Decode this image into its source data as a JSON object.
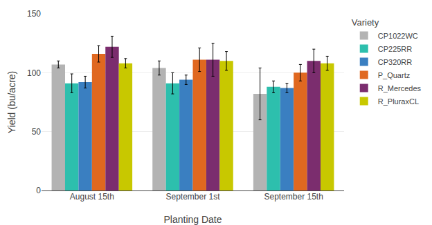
{
  "chart_data": {
    "type": "bar",
    "xlabel": "Planting Date",
    "ylabel": "Yield (bu/acre)",
    "legend_title": "Variety",
    "categories": [
      "August 15th",
      "September 1st",
      "September 15th"
    ],
    "series": [
      {
        "name": "CP1022WC",
        "color": "#b3b3b3",
        "values": [
          107,
          104,
          82
        ],
        "errors": [
          3,
          6,
          22
        ]
      },
      {
        "name": "CP225RR",
        "color": "#2dbfad",
        "values": [
          91,
          91,
          88
        ],
        "errors": [
          8,
          9,
          5
        ]
      },
      {
        "name": "CP320RR",
        "color": "#3a7fc1",
        "values": [
          92,
          94,
          87
        ],
        "errors": [
          5,
          4,
          4
        ]
      },
      {
        "name": "P_Quartz",
        "color": "#e06820",
        "values": [
          116,
          111,
          100
        ],
        "errors": [
          7,
          10,
          7
        ]
      },
      {
        "name": "R_Mercedes",
        "color": "#7b2d6e",
        "values": [
          122,
          111,
          110
        ],
        "errors": [
          9,
          14,
          10
        ]
      },
      {
        "name": "R_PluraxCL",
        "color": "#c8c800",
        "values": [
          108,
          110,
          108
        ],
        "errors": [
          4,
          8,
          6
        ]
      }
    ],
    "ylim": [
      0,
      150
    ],
    "yticks": [
      0,
      50,
      100,
      150
    ],
    "grid": true,
    "legend": "right"
  }
}
